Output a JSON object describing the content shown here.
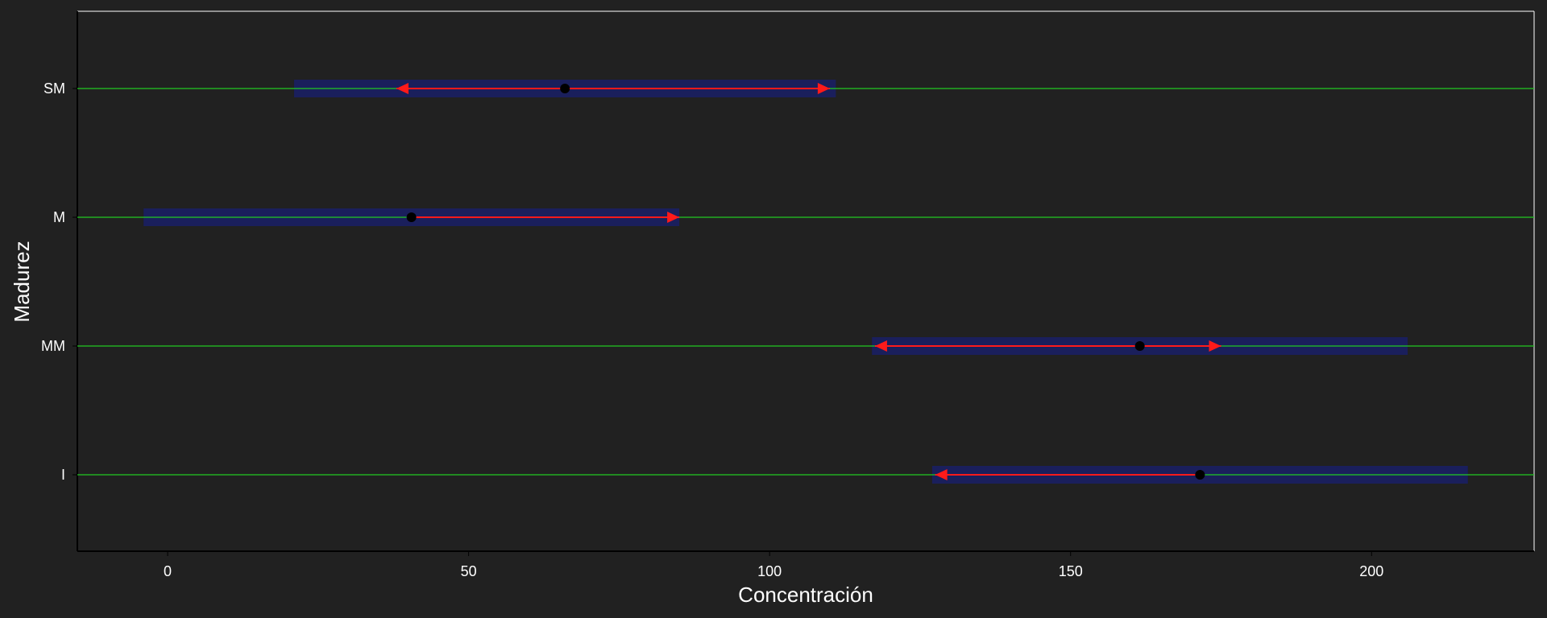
{
  "chart_data": {
    "type": "interval",
    "xlabel": "Concentración",
    "ylabel": "Madurez",
    "xlim": [
      -15,
      227
    ],
    "xticks": [
      0,
      50,
      100,
      150,
      200
    ],
    "categories": [
      "SM",
      "M",
      "MM",
      "I"
    ],
    "series": [
      {
        "values": [
          {
            "category": "SM",
            "point": 66,
            "band": [
              21,
              111
            ],
            "arrow": [
              38,
              110
            ]
          },
          {
            "category": "M",
            "point": 40.5,
            "band": [
              -4,
              85
            ],
            "arrow": [
              40.5,
              85
            ]
          },
          {
            "category": "MM",
            "point": 161.5,
            "band": [
              117,
              206
            ],
            "arrow": [
              117.5,
              175
            ]
          },
          {
            "category": "I",
            "point": 171.5,
            "band": [
              127,
              216
            ],
            "arrow": [
              127.5,
              171.5
            ]
          }
        ]
      }
    ],
    "colors": {
      "background": "#212121",
      "band": "#1a1f5c",
      "guide": "#22c922",
      "arrow": "#ff1a1a",
      "point": "#000000",
      "text": "#ffffff",
      "axis": "#000000",
      "frame": "#ffffff"
    },
    "grid": false,
    "legend": "none"
  }
}
